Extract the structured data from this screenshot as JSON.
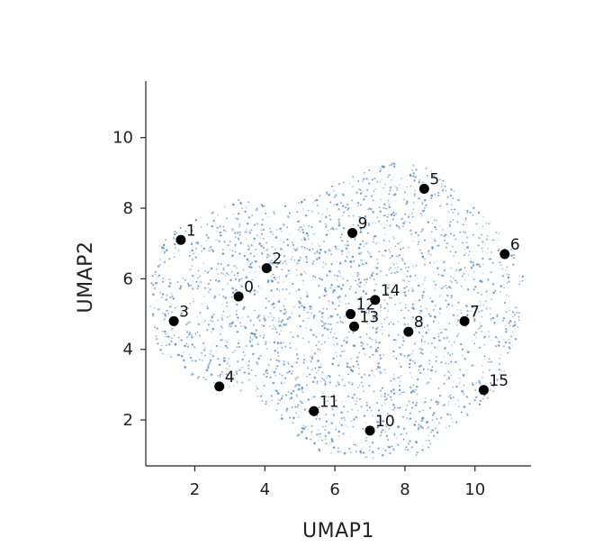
{
  "chart_data": {
    "type": "scatter",
    "xlabel": "UMAP1",
    "ylabel": "UMAP2",
    "xlim": [
      0.6,
      11.6
    ],
    "ylim": [
      0.7,
      11.6
    ],
    "x_ticks": [
      2,
      4,
      6,
      8,
      10
    ],
    "y_ticks": [
      2,
      4,
      6,
      8,
      10
    ],
    "grid": false,
    "background_color": "#4a86be",
    "marker_color": "#000000",
    "series": [
      {
        "labels": [
          "0",
          "1",
          "2",
          "3",
          "4",
          "5",
          "6",
          "7",
          "8",
          "9",
          "10",
          "11",
          "12",
          "13",
          "14",
          "15"
        ],
        "x": [
          3.25,
          1.6,
          4.05,
          1.4,
          2.7,
          8.55,
          10.85,
          9.7,
          8.1,
          6.5,
          7.0,
          5.4,
          6.45,
          6.55,
          7.15,
          10.25
        ],
        "y": [
          5.5,
          7.1,
          6.3,
          4.8,
          2.95,
          8.55,
          6.7,
          4.8,
          4.5,
          7.3,
          1.7,
          2.25,
          5.0,
          4.65,
          5.4,
          2.85
        ]
      }
    ]
  }
}
